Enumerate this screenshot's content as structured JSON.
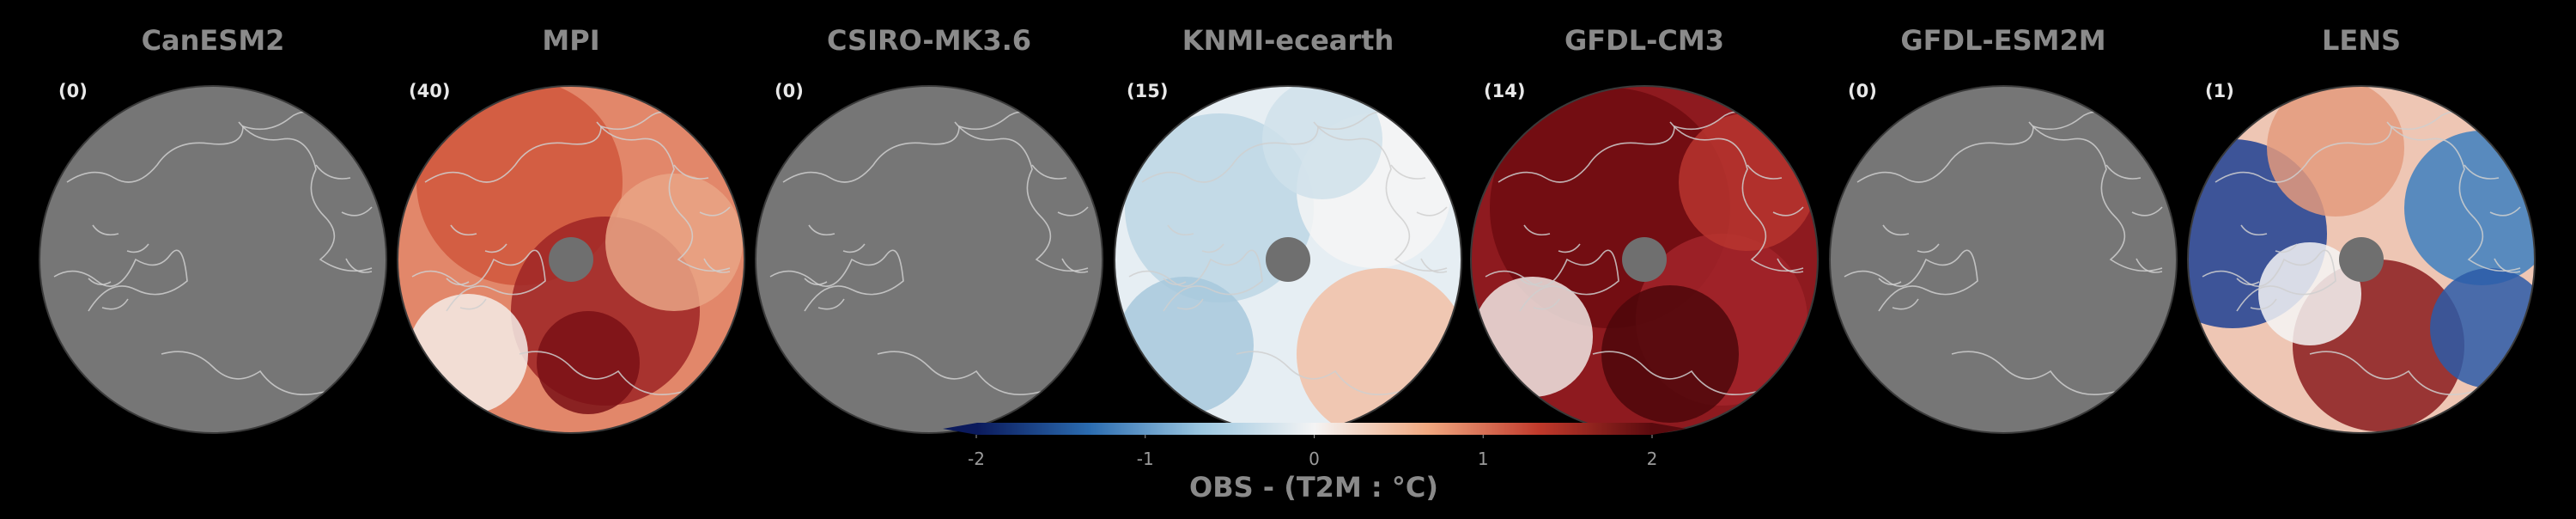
{
  "chart_data": {
    "type": "heatmap",
    "panels": [
      {
        "model": "CanESM2",
        "count": "(0)",
        "pattern": "missing"
      },
      {
        "model": "MPI",
        "count": "(40)",
        "pattern": "warm"
      },
      {
        "model": "CSIRO-MK3.6",
        "count": "(0)",
        "pattern": "missing"
      },
      {
        "model": "KNMI-ecearth",
        "count": "(15)",
        "pattern": "neutral-cool"
      },
      {
        "model": "GFDL-CM3",
        "count": "(14)",
        "pattern": "very-warm"
      },
      {
        "model": "GFDL-ESM2M",
        "count": "(0)",
        "pattern": "missing"
      },
      {
        "model": "LENS",
        "count": "(1)",
        "pattern": "mixed"
      }
    ],
    "colorbar": {
      "label": "OBS - (T2M : °C)",
      "ticks": [
        "-2",
        "-1",
        "0",
        "1",
        "2"
      ],
      "range": [
        -2,
        2
      ],
      "extend": "both",
      "colormap": [
        "#0b1a5c",
        "#2b6cb0",
        "#9cc7e0",
        "#f4f4f4",
        "#f0a880",
        "#c0392b",
        "#5a0a0e"
      ]
    },
    "projection": "north-polar-stereographic",
    "missing_color": "#767676",
    "coastline_color": "#cfcfcf"
  }
}
